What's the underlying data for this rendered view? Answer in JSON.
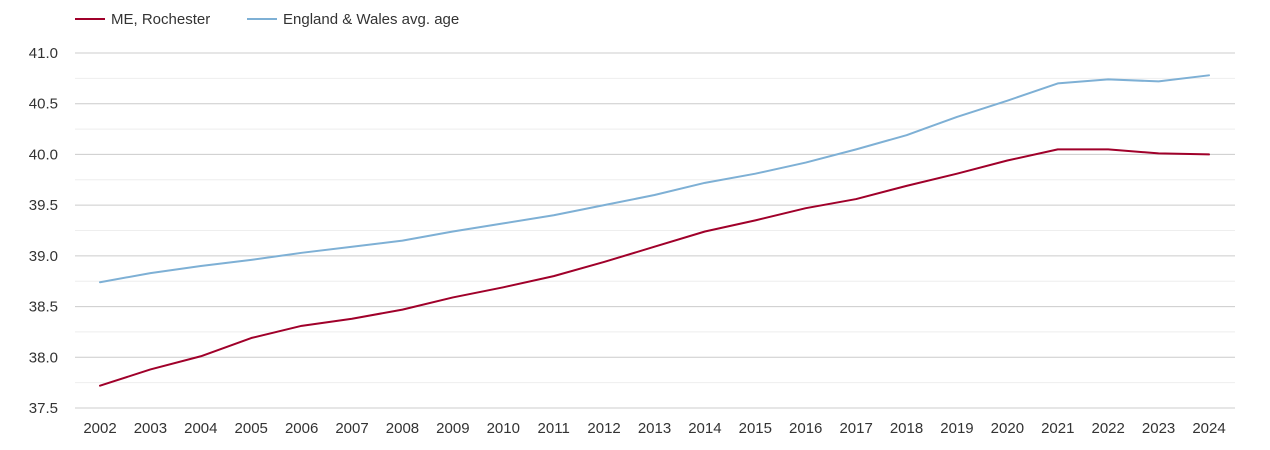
{
  "chart_data": {
    "type": "line",
    "title": "",
    "xlabel": "",
    "ylabel": "",
    "x": [
      2002,
      2003,
      2004,
      2005,
      2006,
      2007,
      2008,
      2009,
      2010,
      2011,
      2012,
      2013,
      2014,
      2015,
      2016,
      2017,
      2018,
      2019,
      2020,
      2021,
      2022,
      2023,
      2024
    ],
    "ylim": [
      37.5,
      41.0
    ],
    "yticks": [
      "37.5",
      "38.0",
      "38.5",
      "39.0",
      "39.5",
      "40.0",
      "40.5",
      "41.0"
    ],
    "grid": true,
    "legend_position": "top-left",
    "series": [
      {
        "name": "ME, Rochester",
        "color": "#a0002a",
        "values": [
          37.72,
          37.88,
          38.01,
          38.19,
          38.31,
          38.38,
          38.47,
          38.59,
          38.69,
          38.8,
          38.94,
          39.09,
          39.24,
          39.35,
          39.47,
          39.56,
          39.69,
          39.81,
          39.94,
          40.05,
          40.05,
          40.01,
          40.0
        ]
      },
      {
        "name": "England & Wales avg. age",
        "color": "#7eb0d5",
        "values": [
          38.74,
          38.83,
          38.9,
          38.96,
          39.03,
          39.09,
          39.15,
          39.24,
          39.32,
          39.4,
          39.5,
          39.6,
          39.72,
          39.81,
          39.92,
          40.05,
          40.19,
          40.37,
          40.53,
          40.7,
          40.74,
          40.72,
          40.78
        ]
      }
    ]
  }
}
